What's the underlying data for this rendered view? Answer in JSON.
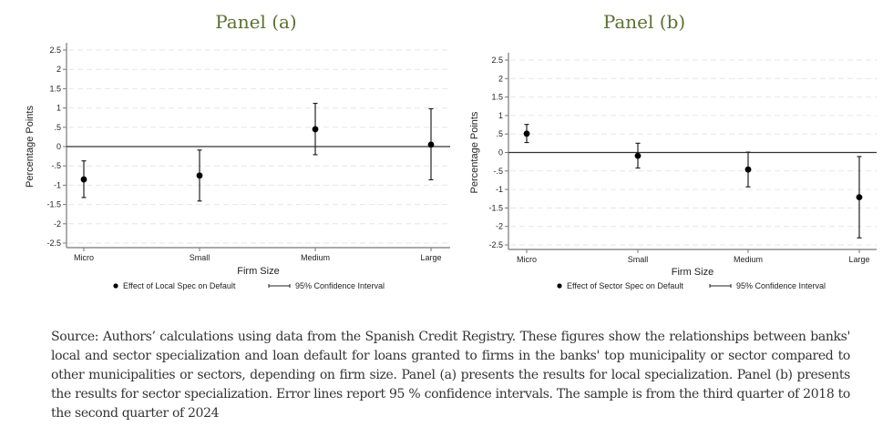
{
  "chart_data": [
    {
      "type": "scatter",
      "title": "Panel (a)",
      "xlabel": "Firm Size",
      "ylabel": "Percentage Points",
      "categories": [
        "Micro",
        "Small",
        "Medium",
        "Large"
      ],
      "ylim": [
        -2.5,
        2.5
      ],
      "yticks": [
        2.5,
        2,
        1.5,
        1,
        0.5,
        0,
        -0.5,
        -1,
        -1.5,
        -2,
        -2.5
      ],
      "ytick_labels": [
        "2.5",
        "2",
        "1.5",
        "1",
        ".5",
        "0",
        "-.5",
        "-1",
        "-1.5",
        "-2",
        "-2.5"
      ],
      "grid": true,
      "reference_line": 0,
      "series": [
        {
          "name": "Effect of Local Spec on Default",
          "values": [
            -0.85,
            -0.75,
            0.45,
            0.05
          ],
          "ci_low": [
            -1.32,
            -1.41,
            -0.21,
            -0.86
          ],
          "ci_high": [
            -0.37,
            -0.09,
            1.12,
            0.98
          ]
        }
      ],
      "legend": [
        "Effect of Local Spec on Default",
        "95% Confidence Interval"
      ],
      "legend_position": "bottom"
    },
    {
      "type": "scatter",
      "title": "Panel (b)",
      "xlabel": "Firm Size",
      "ylabel": "Percentage Points",
      "categories": [
        "Micro",
        "Small",
        "Medium",
        "Large"
      ],
      "ylim": [
        -2.5,
        2.5
      ],
      "yticks": [
        2.5,
        2,
        1.5,
        1,
        0.5,
        0,
        -0.5,
        -1,
        -1.5,
        -2,
        -2.5
      ],
      "ytick_labels": [
        "2.5",
        "2",
        "1.5",
        "1",
        ".5",
        "0",
        "-.5",
        "-1",
        "-1.5",
        "-2",
        "-2.5"
      ],
      "grid": true,
      "reference_line": 0,
      "series": [
        {
          "name": "Effect of Sector Spec on Default",
          "values": [
            0.51,
            -0.09,
            -0.46,
            -1.21
          ],
          "ci_low": [
            0.27,
            -0.42,
            -0.93,
            -2.31
          ],
          "ci_high": [
            0.76,
            0.25,
            0.01,
            -0.11
          ]
        }
      ],
      "legend": [
        "Effect of Sector Spec on Default",
        "95% Confidence Interval"
      ],
      "legend_position": "bottom"
    }
  ],
  "caption": "Source: Authors’ calculations using data from the Spanish Credit Registry. These figures show the relationships between banks' local and sector specialization and loan default for loans granted to firms in the banks' top municipality or sector compared to other municipalities or sectors, depending on firm size. Panel (a) presents the results for local specialization. Panel (b) presents the results for sector specialization. Error lines report 95 % confidence intervals. The sample is from the third quarter of 2018 to the second quarter of 2024",
  "colors": {
    "title": "#5b7133",
    "marker": "#000000",
    "grid": "#e6e6e6",
    "axis": "#777777"
  }
}
